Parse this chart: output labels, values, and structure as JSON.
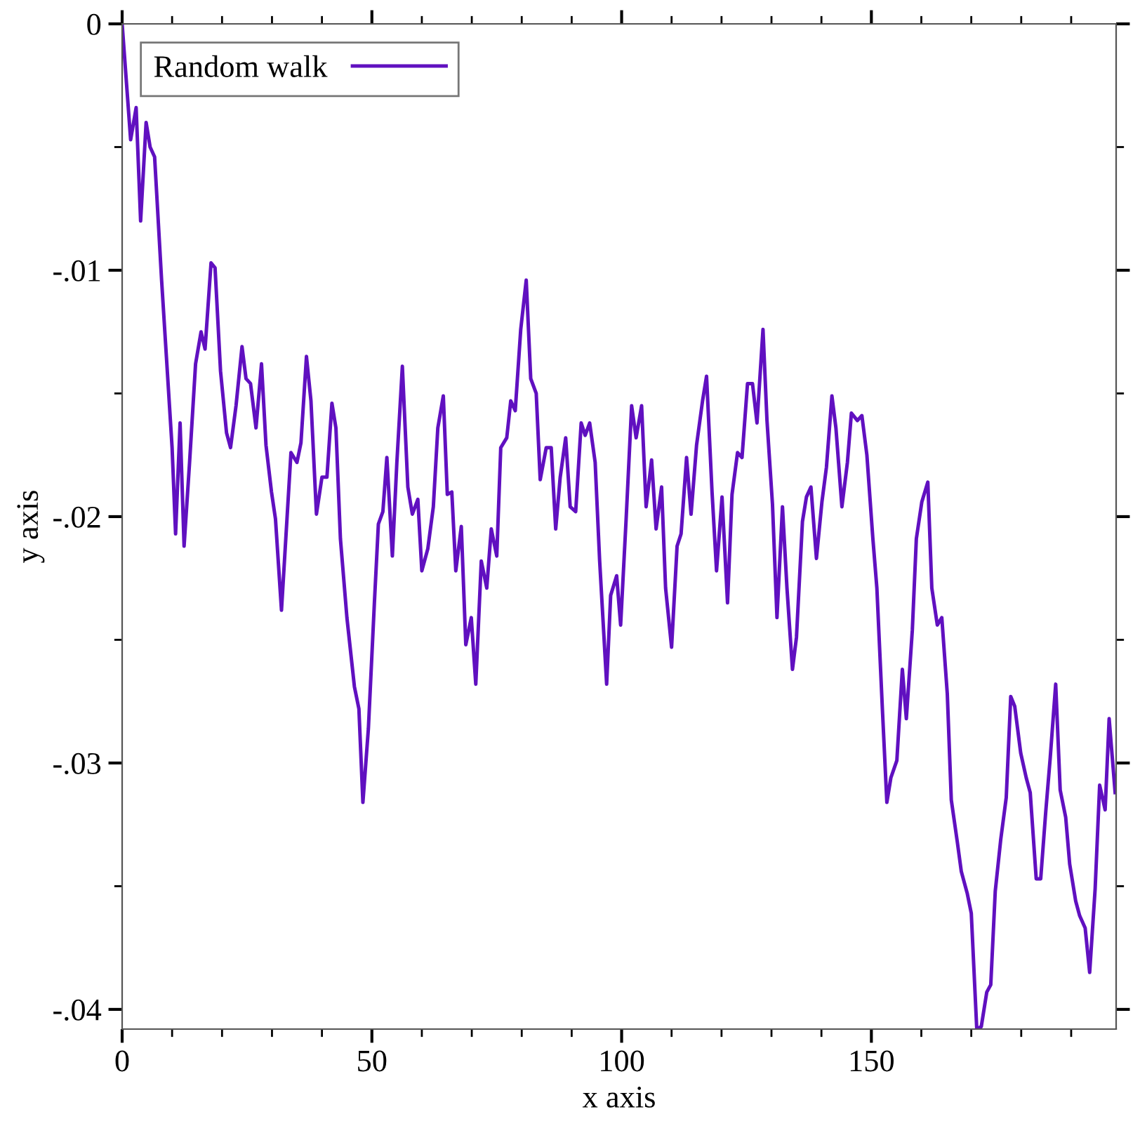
{
  "chart_data": {
    "type": "line",
    "xlabel": "x axis",
    "ylabel": "y axis",
    "xlim": [
      0,
      199
    ],
    "ylim": [
      -0.0408,
      0
    ],
    "xticks": [
      0,
      {
        "value": 10,
        "label": null
      },
      {
        "value": 20,
        "label": null
      },
      {
        "value": 30,
        "label": null
      },
      {
        "value": 40,
        "label": null
      },
      50,
      {
        "value": 60,
        "label": null
      },
      {
        "value": 70,
        "label": null
      },
      {
        "value": 80,
        "label": null
      },
      {
        "value": 90,
        "label": null
      },
      100,
      {
        "value": 110,
        "label": null
      },
      {
        "value": 120,
        "label": null
      },
      {
        "value": 130,
        "label": null
      },
      {
        "value": 140,
        "label": null
      },
      150,
      {
        "value": 160,
        "label": null
      },
      {
        "value": 170,
        "label": null
      },
      {
        "value": 180,
        "label": null
      },
      {
        "value": 190,
        "label": null
      }
    ],
    "yticks": [
      {
        "value": -0.04,
        "label": "-.04"
      },
      {
        "value": -0.035,
        "label": null
      },
      {
        "value": -0.03,
        "label": "-.03"
      },
      {
        "value": -0.025,
        "label": null
      },
      {
        "value": -0.02,
        "label": "-.02"
      },
      {
        "value": -0.015,
        "label": null
      },
      {
        "value": -0.01,
        "label": "-.01"
      },
      {
        "value": -0.005,
        "label": null
      },
      0
    ],
    "grid": false,
    "legend": "top left",
    "marker": "none",
    "line_style": "solid",
    "series": [
      {
        "name": "Random walk",
        "color": "#6010c0",
        "x": [
          0,
          1.7,
          2.8,
          3.7,
          4.8,
          5.6,
          6.5,
          7.9,
          10,
          10.7,
          11.6,
          12.4,
          13.5,
          14.7,
          15.8,
          16.6,
          17.8,
          18.6,
          19.7,
          20.9,
          21.7,
          22.8,
          24,
          24.8,
          25.7,
          26.8,
          27.9,
          28.8,
          29.9,
          30.7,
          31.9,
          33,
          33.8,
          35,
          35.8,
          36.9,
          37.8,
          38.9,
          40,
          41,
          42,
          42.8,
          43.7,
          45,
          46.5,
          47.4,
          48.2,
          49.3,
          50.5,
          51.3,
          52.2,
          53,
          54.1,
          55,
          56.1,
          57.2,
          58.1,
          59.2,
          60,
          61.2,
          62.3,
          63.2,
          64.3,
          65.1,
          66,
          66.8,
          67.9,
          68.8,
          69.9,
          70.8,
          71.9,
          73,
          73.9,
          75,
          75.8,
          77,
          77.8,
          78.7,
          79.8,
          80.9,
          81.8,
          82.9,
          83.7,
          84.9,
          85.9,
          86.8,
          87.7,
          88.8,
          89.7,
          90.8,
          91.9,
          92.7,
          93.6,
          94.7,
          95.6,
          97,
          97.8,
          99,
          99.8,
          100.9,
          102,
          102.9,
          104,
          104.9,
          106,
          106.9,
          108,
          108.8,
          110,
          111.1,
          111.9,
          113,
          113.9,
          115,
          116.2,
          117,
          118.1,
          119,
          120.1,
          121.2,
          122.1,
          123.2,
          124.1,
          125.2,
          126.2,
          127.1,
          128.3,
          129.1,
          130.2,
          131.1,
          132.2,
          133.1,
          134.2,
          135,
          136.2,
          137,
          137.9,
          139,
          140.1,
          141,
          142.1,
          142.9,
          144.1,
          145.2,
          146,
          147.2,
          148.1,
          149.1,
          150.3,
          151.1,
          152.2,
          153.1,
          153.9,
          155.1,
          156.2,
          157,
          158.2,
          159,
          160.1,
          161.3,
          162.1,
          163.2,
          164.1,
          165.2,
          166,
          167.2,
          168,
          169.2,
          170,
          171.1,
          172,
          173.1,
          173.9,
          174.8,
          175.9,
          177,
          177.9,
          178.7,
          179.9,
          181,
          181.8,
          183,
          183.9,
          184.9,
          185.8,
          186.9,
          187.8,
          188.9,
          189.7,
          190.9,
          191.7,
          192.8,
          193.7,
          194.8,
          195.7,
          196.8,
          197.6,
          198.8
        ],
        "values": [
          0,
          -0.0047,
          -0.0034,
          -0.008,
          -0.004,
          -0.005,
          -0.0054,
          -0.0104,
          -0.0172,
          -0.0207,
          -0.0162,
          -0.0212,
          -0.0178,
          -0.0138,
          -0.0125,
          -0.0132,
          -0.0097,
          -0.0099,
          -0.0141,
          -0.0166,
          -0.0172,
          -0.0155,
          -0.0131,
          -0.0144,
          -0.0146,
          -0.0164,
          -0.0138,
          -0.0171,
          -0.019,
          -0.0201,
          -0.0238,
          -0.0201,
          -0.0174,
          -0.0178,
          -0.017,
          -0.0135,
          -0.0153,
          -0.0199,
          -0.0184,
          -0.0184,
          -0.0154,
          -0.0164,
          -0.0209,
          -0.0241,
          -0.0269,
          -0.0278,
          -0.0316,
          -0.0286,
          -0.0235,
          -0.0203,
          -0.0198,
          -0.0176,
          -0.0216,
          -0.0178,
          -0.0139,
          -0.0188,
          -0.0199,
          -0.0193,
          -0.0222,
          -0.0213,
          -0.0196,
          -0.0164,
          -0.0151,
          -0.0191,
          -0.019,
          -0.0222,
          -0.0204,
          -0.0252,
          -0.0241,
          -0.0268,
          -0.0218,
          -0.0229,
          -0.0205,
          -0.0216,
          -0.0172,
          -0.0168,
          -0.0153,
          -0.0157,
          -0.0124,
          -0.0104,
          -0.0144,
          -0.015,
          -0.0185,
          -0.0172,
          -0.0172,
          -0.0205,
          -0.0184,
          -0.0168,
          -0.0196,
          -0.0198,
          -0.0162,
          -0.0167,
          -0.0162,
          -0.0178,
          -0.0218,
          -0.0268,
          -0.0232,
          -0.0224,
          -0.0244,
          -0.0201,
          -0.0155,
          -0.0168,
          -0.0155,
          -0.0196,
          -0.0177,
          -0.0205,
          -0.0188,
          -0.0229,
          -0.0253,
          -0.0212,
          -0.0207,
          -0.0176,
          -0.0199,
          -0.0171,
          -0.0153,
          -0.0143,
          -0.019,
          -0.0222,
          -0.0192,
          -0.0235,
          -0.0191,
          -0.0174,
          -0.0176,
          -0.0146,
          -0.0146,
          -0.0162,
          -0.0124,
          -0.0161,
          -0.0195,
          -0.0241,
          -0.0196,
          -0.0229,
          -0.0262,
          -0.0249,
          -0.0202,
          -0.0192,
          -0.0188,
          -0.0217,
          -0.0194,
          -0.018,
          -0.0151,
          -0.0164,
          -0.0196,
          -0.0178,
          -0.0158,
          -0.0161,
          -0.0159,
          -0.0175,
          -0.0209,
          -0.0229,
          -0.0278,
          -0.0316,
          -0.0306,
          -0.0299,
          -0.0262,
          -0.0282,
          -0.0246,
          -0.0209,
          -0.0194,
          -0.0186,
          -0.0229,
          -0.0244,
          -0.0241,
          -0.0272,
          -0.0315,
          -0.0332,
          -0.0344,
          -0.0353,
          -0.0361,
          -0.0408,
          -0.0407,
          -0.0393,
          -0.039,
          -0.0352,
          -0.0331,
          -0.0314,
          -0.0273,
          -0.0277,
          -0.0296,
          -0.0306,
          -0.0312,
          -0.0347,
          -0.0347,
          -0.032,
          -0.0298,
          -0.0268,
          -0.0311,
          -0.0322,
          -0.0341,
          -0.0356,
          -0.0362,
          -0.0367,
          -0.0385,
          -0.0351,
          -0.0309,
          -0.0319,
          -0.0282,
          -0.0312
        ]
      }
    ]
  }
}
